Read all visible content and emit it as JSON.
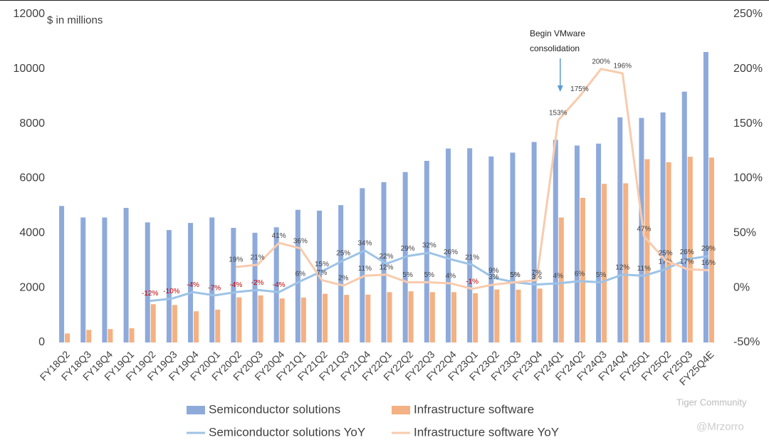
{
  "chart_data": {
    "type": "bar",
    "y_axis_label": "$ in millions",
    "annotation": [
      "Begin VMware",
      "consolidation"
    ],
    "annotation_category": "FY24Q1",
    "watermark": [
      "Tiger Community",
      "@Mrzorro"
    ],
    "categories": [
      "FY18Q2",
      "FY18Q3",
      "FY18Q4",
      "FY19Q1",
      "FY19Q2",
      "FY19Q3",
      "FY19Q4",
      "FY20Q1",
      "FY20Q2",
      "FY20Q3",
      "FY20Q4",
      "FY21Q1",
      "FY21Q2",
      "FY21Q3",
      "FY21Q4",
      "FY22Q1",
      "FY22Q2",
      "FY22Q3",
      "FY22Q4",
      "FY23Q1",
      "FY23Q2",
      "FY23Q3",
      "FY23Q4",
      "FY24Q1",
      "FY24Q2",
      "FY24Q3",
      "FY24Q4",
      "FY25Q1",
      "FY25Q2",
      "FY25Q3",
      "FY25Q4E"
    ],
    "ylim": [
      0,
      12000
    ],
    "yticks": [
      0,
      2000,
      4000,
      6000,
      8000,
      10000,
      12000
    ],
    "y2lim": [
      -50,
      250
    ],
    "y2ticks": [
      {
        "value": -50,
        "label": "-50%"
      },
      {
        "value": 0,
        "label": "0%"
      },
      {
        "value": 50,
        "label": "50%"
      },
      {
        "value": 100,
        "label": "100%"
      },
      {
        "value": 150,
        "label": "150%"
      },
      {
        "value": 200,
        "label": "200%"
      },
      {
        "value": 250,
        "label": "250%"
      }
    ],
    "series": [
      {
        "name": "Semiconductor solutions",
        "type": "bar",
        "color": "#8eaadb",
        "values": [
          4990,
          4570,
          4570,
          4920,
          4390,
          4110,
          4370,
          4570,
          4190,
          4010,
          4210,
          4850,
          4820,
          5020,
          5640,
          5860,
          6230,
          6640,
          7090,
          7100,
          6800,
          6940,
          7330,
          7410,
          7200,
          7270,
          8230,
          8210,
          8410,
          9170,
          10620
        ]
      },
      {
        "name": "Infrastructure software",
        "type": "bar",
        "color": "#f4b183",
        "values": [
          330,
          460,
          490,
          520,
          1400,
          1370,
          1140,
          1200,
          1650,
          1720,
          1610,
          1640,
          1780,
          1740,
          1750,
          1840,
          1870,
          1840,
          1840,
          1800,
          1940,
          1930,
          1970,
          4570,
          5290,
          5800,
          5820,
          6700,
          6590,
          6790,
          6760
        ]
      },
      {
        "name": "Semiconductor solutions YoY",
        "type": "line",
        "axis": "y2",
        "color": "#9dc3e6",
        "negative_label_color": "#c00000",
        "values": [
          null,
          null,
          null,
          null,
          -12,
          -10,
          -4,
          -7,
          -4,
          -2,
          -4,
          6,
          15,
          25,
          34,
          22,
          29,
          32,
          26,
          21,
          9,
          5,
          3,
          4,
          6,
          5,
          12,
          11,
          17,
          26,
          29
        ],
        "value_labels": [
          null,
          null,
          null,
          null,
          "-12%",
          "-10%",
          "-4%",
          "-7%",
          "-4%",
          "-2%",
          "-4%",
          "6%",
          "15%",
          "25%",
          "34%",
          "22%",
          "29%",
          "32%",
          "26%",
          "21%",
          "9%",
          "5%",
          "3%",
          "4%",
          "6%",
          "5%",
          "12%",
          "11%",
          "17%",
          "26%",
          "29%"
        ]
      },
      {
        "name": "Infrastructure software YoY",
        "type": "line",
        "axis": "y2",
        "color": "#f8cbad",
        "negative_label_color": "#c00000",
        "values": [
          null,
          null,
          null,
          null,
          null,
          null,
          null,
          null,
          19,
          21,
          41,
          36,
          7,
          2,
          11,
          12,
          5,
          5,
          4,
          -1,
          3,
          5,
          7,
          153,
          175,
          200,
          196,
          47,
          25,
          17,
          16
        ],
        "value_labels": [
          null,
          null,
          null,
          null,
          null,
          null,
          null,
          null,
          "19%",
          "21%",
          "41%",
          "36%",
          "7%",
          "2%",
          "11%",
          "12%",
          "5%",
          "5%",
          "4%",
          "-1%",
          "3%",
          "5%",
          "7%",
          "153%",
          "175%",
          "200%",
          "196%",
          "47%",
          "25%",
          "17%",
          "16%"
        ]
      }
    ]
  }
}
